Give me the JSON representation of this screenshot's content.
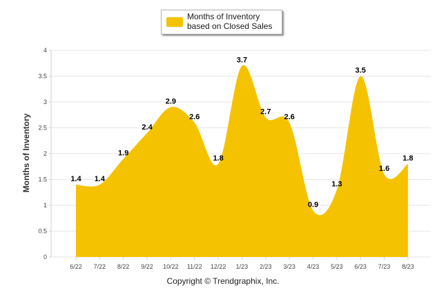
{
  "chart_data": {
    "type": "area",
    "categories": [
      "6/22",
      "7/22",
      "8/22",
      "9/22",
      "10/22",
      "11/22",
      "12/22",
      "1/23",
      "2/23",
      "3/23",
      "4/23",
      "5/23",
      "6/23",
      "7/23",
      "8/23"
    ],
    "series": [
      {
        "name": "Months of Inventory based on Closed Sales",
        "values": [
          1.4,
          1.4,
          1.9,
          2.4,
          2.9,
          2.6,
          1.8,
          3.7,
          2.7,
          2.6,
          0.9,
          1.3,
          3.5,
          1.6,
          1.8
        ],
        "color": "#F5C200"
      }
    ],
    "ylabel": "Months of Inventory",
    "xlabel": "",
    "ylim": [
      0,
      4
    ],
    "yticks": [
      "0",
      "0.5",
      "1",
      "1.5",
      "2",
      "2.5",
      "3",
      "3.5",
      "4"
    ],
    "grid": true,
    "legend_position": "top-center",
    "curve": "smooth"
  },
  "legend": {
    "label": "Months of Inventory based on Closed Sales",
    "color": "#F5C200"
  },
  "footer": {
    "text": "Copyright © Trendgraphix, Inc."
  }
}
